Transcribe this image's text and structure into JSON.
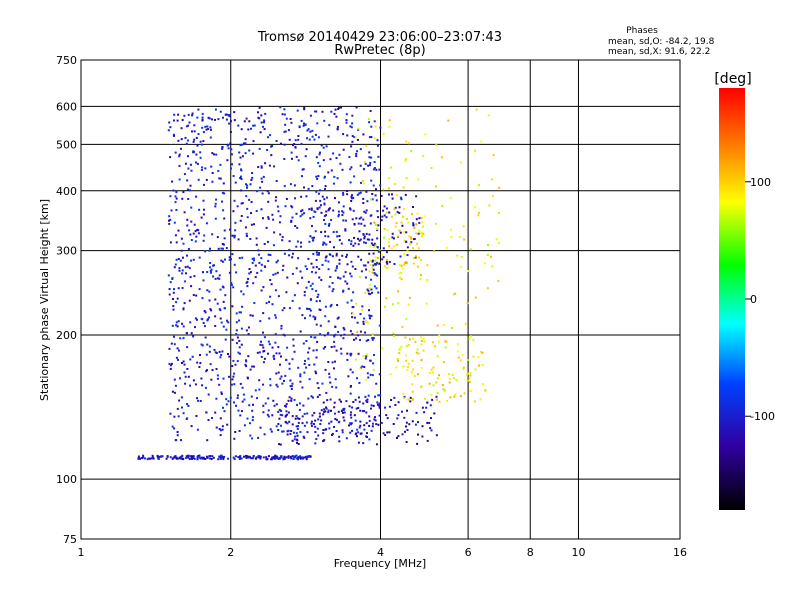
{
  "chart_data": {
    "type": "scatter",
    "title": "Tromsø 20140429 23:06:00–23:07:43",
    "subtitle": "RwPretec (8p)",
    "phases": {
      "title": "Phases",
      "line_o": "mean, sd,O: -84.2, 19.8",
      "line_x": "mean, sd,X:  91.6, 22.2"
    },
    "xlabel": "Frequency [MHz]",
    "ylabel": "Stationary phase Virtual Height [km]",
    "x_scale": "log",
    "y_scale": "log",
    "xlim": [
      1,
      16
    ],
    "ylim": [
      75,
      750
    ],
    "x_ticks": [
      1,
      2,
      4,
      6,
      8,
      10,
      16
    ],
    "x_tick_labels": [
      "1",
      "2",
      "4",
      "6",
      "8",
      "10",
      "16"
    ],
    "y_ticks": [
      75,
      100,
      200,
      300,
      400,
      500,
      600,
      750
    ],
    "y_tick_labels": [
      "75",
      "100",
      "200",
      "300",
      "400",
      "500",
      "600",
      "750"
    ],
    "grid": true,
    "colorbar": {
      "label": "[deg]",
      "range": [
        -180,
        180
      ],
      "ticks": [
        100,
        0,
        -100
      ],
      "tick_labels": [
        "100",
        "0",
        "-100"
      ]
    },
    "traces": [
      {
        "desc": "O-mode bottom trace",
        "f_range": [
          1.3,
          2.9
        ],
        "h_range": [
          110,
          112
        ],
        "phase": -105,
        "count": 220
      },
      {
        "desc": "O-mode lower trace",
        "f_range": [
          2.5,
          5.3
        ],
        "h_range": [
          118,
          150
        ],
        "phase": -115,
        "count": 150
      },
      {
        "desc": "X-mode lower trace",
        "f_range": [
          4.3,
          6.5
        ],
        "h_range": [
          145,
          200
        ],
        "phase": 90,
        "count": 90
      },
      {
        "desc": "O-mode F trace",
        "f_range": [
          2.9,
          4.8
        ],
        "h_range": [
          280,
          400
        ],
        "phase": -110,
        "count": 130
      },
      {
        "desc": "X-mode F trace",
        "f_range": [
          3.8,
          5.0
        ],
        "h_range": [
          260,
          360
        ],
        "phase": 95,
        "count": 70
      },
      {
        "desc": "O-mode spread F",
        "f_range": [
          1.5,
          4.0
        ],
        "h_range": [
          120,
          600
        ],
        "phase": -100,
        "count": 1400
      },
      {
        "desc": "X-mode spread F",
        "f_range": [
          3.5,
          7.0
        ],
        "h_range": [
          150,
          600
        ],
        "phase": 85,
        "count": 160
      }
    ]
  }
}
